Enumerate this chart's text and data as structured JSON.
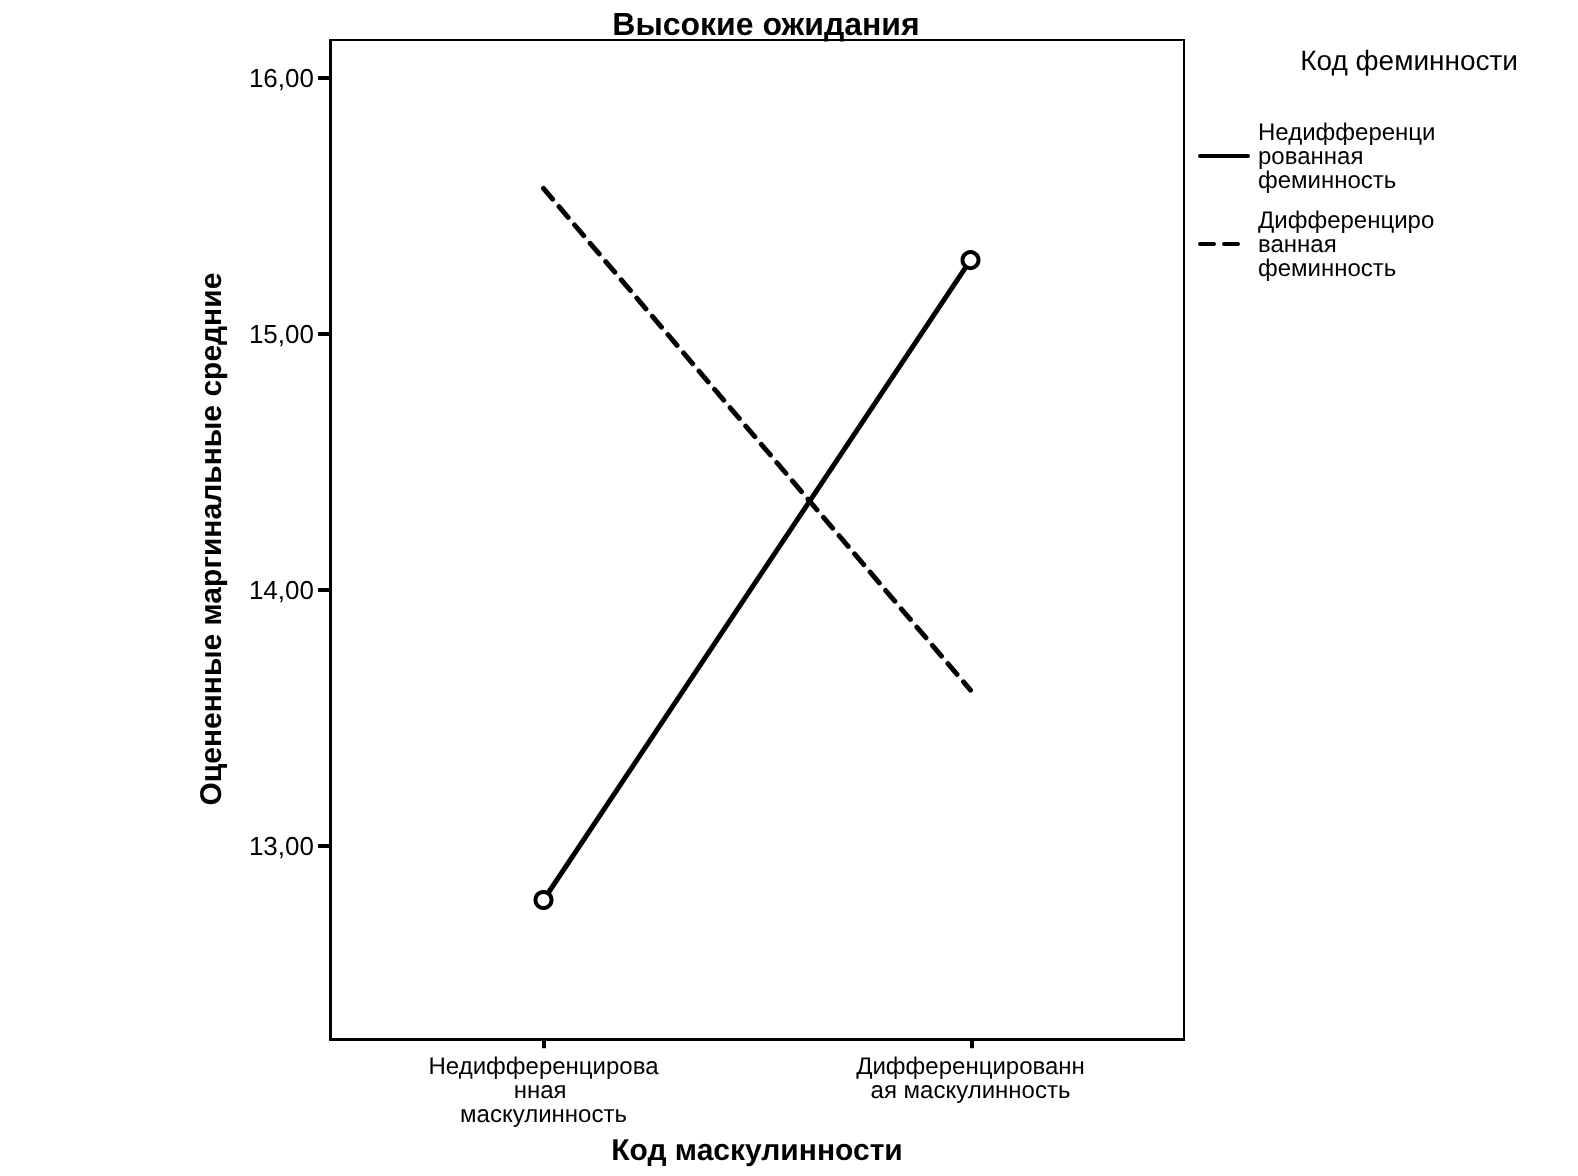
{
  "chart_data": {
    "type": "line",
    "title": "Высокие ожидания",
    "xlabel": "Код маскулинности",
    "ylabel": "Оцененные маргинальные средние",
    "legend_title": "Код феминности",
    "categories": [
      "Недифференцированная маскулинность",
      "Дифференцированная маскулинность"
    ],
    "series": [
      {
        "name": "Недифференцированная феминность",
        "color": "#000000",
        "values": [
          12.79,
          15.29
        ],
        "line_style": "solid",
        "marker": "circle"
      },
      {
        "name": "Дифференцированная феминность",
        "color": "#000000",
        "values": [
          15.57,
          13.61
        ],
        "line_style": "dashed",
        "marker": "none"
      }
    ],
    "ylim": [
      12.25,
      16.15
    ],
    "yticks": [
      {
        "value": 13,
        "label": "13,00"
      },
      {
        "value": 14,
        "label": "14,00"
      },
      {
        "value": 15,
        "label": "15,00"
      },
      {
        "value": 16,
        "label": "16,00"
      }
    ],
    "grid": false,
    "legend": "right"
  }
}
